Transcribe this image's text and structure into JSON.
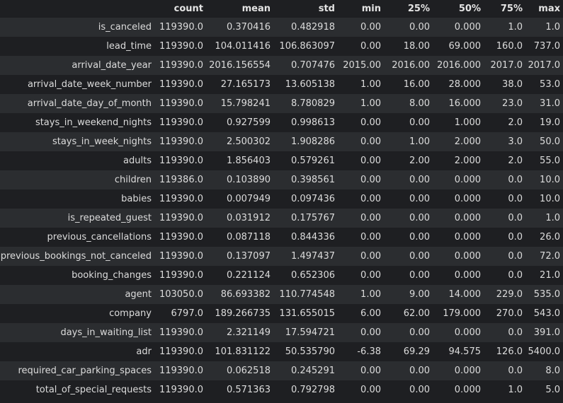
{
  "table": {
    "columns": [
      "",
      "count",
      "mean",
      "std",
      "min",
      "25%",
      "50%",
      "75%",
      "max"
    ],
    "rows": [
      {
        "name": "is_canceled",
        "count": "119390.0",
        "mean": "0.370416",
        "std": "0.482918",
        "min": "0.00",
        "p25": "0.00",
        "p50": "0.000",
        "p75": "1.0",
        "max": "1.0"
      },
      {
        "name": "lead_time",
        "count": "119390.0",
        "mean": "104.011416",
        "std": "106.863097",
        "min": "0.00",
        "p25": "18.00",
        "p50": "69.000",
        "p75": "160.0",
        "max": "737.0"
      },
      {
        "name": "arrival_date_year",
        "count": "119390.0",
        "mean": "2016.156554",
        "std": "0.707476",
        "min": "2015.00",
        "p25": "2016.00",
        "p50": "2016.000",
        "p75": "2017.0",
        "max": "2017.0"
      },
      {
        "name": "arrival_date_week_number",
        "count": "119390.0",
        "mean": "27.165173",
        "std": "13.605138",
        "min": "1.00",
        "p25": "16.00",
        "p50": "28.000",
        "p75": "38.0",
        "max": "53.0"
      },
      {
        "name": "arrival_date_day_of_month",
        "count": "119390.0",
        "mean": "15.798241",
        "std": "8.780829",
        "min": "1.00",
        "p25": "8.00",
        "p50": "16.000",
        "p75": "23.0",
        "max": "31.0"
      },
      {
        "name": "stays_in_weekend_nights",
        "count": "119390.0",
        "mean": "0.927599",
        "std": "0.998613",
        "min": "0.00",
        "p25": "0.00",
        "p50": "1.000",
        "p75": "2.0",
        "max": "19.0"
      },
      {
        "name": "stays_in_week_nights",
        "count": "119390.0",
        "mean": "2.500302",
        "std": "1.908286",
        "min": "0.00",
        "p25": "1.00",
        "p50": "2.000",
        "p75": "3.0",
        "max": "50.0"
      },
      {
        "name": "adults",
        "count": "119390.0",
        "mean": "1.856403",
        "std": "0.579261",
        "min": "0.00",
        "p25": "2.00",
        "p50": "2.000",
        "p75": "2.0",
        "max": "55.0"
      },
      {
        "name": "children",
        "count": "119386.0",
        "mean": "0.103890",
        "std": "0.398561",
        "min": "0.00",
        "p25": "0.00",
        "p50": "0.000",
        "p75": "0.0",
        "max": "10.0"
      },
      {
        "name": "babies",
        "count": "119390.0",
        "mean": "0.007949",
        "std": "0.097436",
        "min": "0.00",
        "p25": "0.00",
        "p50": "0.000",
        "p75": "0.0",
        "max": "10.0"
      },
      {
        "name": "is_repeated_guest",
        "count": "119390.0",
        "mean": "0.031912",
        "std": "0.175767",
        "min": "0.00",
        "p25": "0.00",
        "p50": "0.000",
        "p75": "0.0",
        "max": "1.0"
      },
      {
        "name": "previous_cancellations",
        "count": "119390.0",
        "mean": "0.087118",
        "std": "0.844336",
        "min": "0.00",
        "p25": "0.00",
        "p50": "0.000",
        "p75": "0.0",
        "max": "26.0"
      },
      {
        "name": "previous_bookings_not_canceled",
        "count": "119390.0",
        "mean": "0.137097",
        "std": "1.497437",
        "min": "0.00",
        "p25": "0.00",
        "p50": "0.000",
        "p75": "0.0",
        "max": "72.0"
      },
      {
        "name": "booking_changes",
        "count": "119390.0",
        "mean": "0.221124",
        "std": "0.652306",
        "min": "0.00",
        "p25": "0.00",
        "p50": "0.000",
        "p75": "0.0",
        "max": "21.0"
      },
      {
        "name": "agent",
        "count": "103050.0",
        "mean": "86.693382",
        "std": "110.774548",
        "min": "1.00",
        "p25": "9.00",
        "p50": "14.000",
        "p75": "229.0",
        "max": "535.0"
      },
      {
        "name": "company",
        "count": "6797.0",
        "mean": "189.266735",
        "std": "131.655015",
        "min": "6.00",
        "p25": "62.00",
        "p50": "179.000",
        "p75": "270.0",
        "max": "543.0"
      },
      {
        "name": "days_in_waiting_list",
        "count": "119390.0",
        "mean": "2.321149",
        "std": "17.594721",
        "min": "0.00",
        "p25": "0.00",
        "p50": "0.000",
        "p75": "0.0",
        "max": "391.0"
      },
      {
        "name": "adr",
        "count": "119390.0",
        "mean": "101.831122",
        "std": "50.535790",
        "min": "-6.38",
        "p25": "69.29",
        "p50": "94.575",
        "p75": "126.0",
        "max": "5400.0"
      },
      {
        "name": "required_car_parking_spaces",
        "count": "119390.0",
        "mean": "0.062518",
        "std": "0.245291",
        "min": "0.00",
        "p25": "0.00",
        "p50": "0.000",
        "p75": "0.0",
        "max": "8.0"
      },
      {
        "name": "total_of_special_requests",
        "count": "119390.0",
        "mean": "0.571363",
        "std": "0.792798",
        "min": "0.00",
        "p25": "0.00",
        "p50": "0.000",
        "p75": "1.0",
        "max": "5.0"
      }
    ]
  },
  "colors": {
    "background": "#1e1f22",
    "stripe": "#2b2d30",
    "text": "#dcdcdc"
  }
}
